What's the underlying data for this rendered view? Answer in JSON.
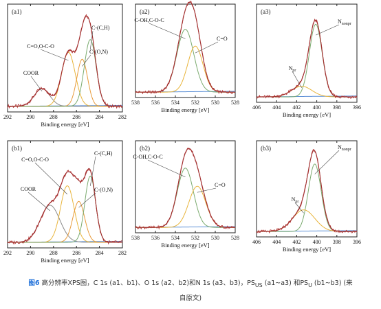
{
  "colors": {
    "measured": "#b33a3a",
    "envelope": "#a23030",
    "palette": [
      "#7aaa6e",
      "#e8b43a",
      "#e89a3a",
      "#5b8fd6",
      "#8a8a8a"
    ]
  },
  "caption": {
    "figure_label": "图6",
    "text_1": " 高分辨率XPS图，C 1s (a1、b1)、O 1s (a2、b2)和N 1s (a3、b3)，PS",
    "sub_1": "US",
    "text_2": " (a1~a3) 和PS",
    "sub_2": "U",
    "text_3": " (b1~b3)  (来",
    "line_2": "自原文)"
  },
  "chart_data": [
    {
      "panel": "(a1)",
      "type": "line",
      "xlabel": "Binding energy [eV]",
      "xlim": [
        292,
        282
      ],
      "ylim": [
        0,
        1.0
      ],
      "xticks": [
        292,
        290,
        288,
        286,
        284,
        282
      ],
      "peaks": [
        {
          "label": "COOR",
          "center": 289.0,
          "height": 0.18,
          "fwhm": 1.6
        },
        {
          "label": "C=O,O-C-O",
          "center": 286.7,
          "height": 0.55,
          "fwhm": 1.4
        },
        {
          "label": "C-(O,N)",
          "center": 285.5,
          "height": 0.48,
          "fwhm": 1.1
        },
        {
          "label": "C-(C,H)",
          "center": 284.8,
          "height": 0.68,
          "fwhm": 1.2
        }
      ],
      "series": [
        {
          "name": "measured"
        },
        {
          "name": "fit envelope"
        }
      ]
    },
    {
      "panel": "(a2)",
      "type": "line",
      "xlabel": "Binding energy [eV]",
      "xlim": [
        538,
        528
      ],
      "ylim": [
        0,
        1.0
      ],
      "xticks": [
        538,
        536,
        534,
        532,
        530,
        528
      ],
      "peaks": [
        {
          "label": "C-OH,C-O-C",
          "center": 533.0,
          "height": 0.75,
          "fwhm": 2.0
        },
        {
          "label": "C=O",
          "center": 532.0,
          "height": 0.55,
          "fwhm": 1.8
        }
      ],
      "series": [
        {
          "name": "measured"
        },
        {
          "name": "fit envelope"
        }
      ]
    },
    {
      "panel": "(a3)",
      "type": "line",
      "xlabel": "Binding energy [eV]",
      "xlim": [
        406,
        396
      ],
      "ylim": [
        0,
        1.0
      ],
      "xticks": [
        406,
        404,
        402,
        400,
        398,
        396
      ],
      "peaks": [
        {
          "label": "Nnonpr",
          "center": 400.1,
          "height": 0.82,
          "fwhm": 1.5
        },
        {
          "label": "Npr",
          "center": 401.5,
          "height": 0.12,
          "fwhm": 2.4
        }
      ],
      "series": [
        {
          "name": "measured"
        },
        {
          "name": "fit envelope"
        }
      ]
    },
    {
      "panel": "(b1)",
      "type": "line",
      "xlabel": "Binding energy [eV]",
      "xlim": [
        292,
        282
      ],
      "ylim": [
        0,
        1.0
      ],
      "xticks": [
        292,
        290,
        288,
        286,
        284,
        282
      ],
      "peaks": [
        {
          "label": "COOR",
          "center": 288.3,
          "height": 0.38,
          "fwhm": 2.0
        },
        {
          "label": "C=O,O-C-O",
          "center": 286.8,
          "height": 0.58,
          "fwhm": 1.4
        },
        {
          "label": "C-(O,N)",
          "center": 285.8,
          "height": 0.42,
          "fwhm": 1.2
        },
        {
          "label": "C-(C,H)",
          "center": 284.8,
          "height": 0.68,
          "fwhm": 1.1
        }
      ],
      "series": [
        {
          "name": "measured"
        },
        {
          "name": "fit envelope"
        }
      ]
    },
    {
      "panel": "(b2)",
      "type": "line",
      "xlabel": "Binding energy [eV]",
      "xlim": [
        538,
        528
      ],
      "ylim": [
        0,
        1.0
      ],
      "xticks": [
        538,
        536,
        534,
        532,
        530,
        528
      ],
      "peaks": [
        {
          "label": "C-OH,C-O-C",
          "center": 533.0,
          "height": 0.72,
          "fwhm": 1.9
        },
        {
          "label": "C=O",
          "center": 531.8,
          "height": 0.5,
          "fwhm": 2.0
        }
      ],
      "series": [
        {
          "name": "measured"
        },
        {
          "name": "fit envelope"
        }
      ]
    },
    {
      "panel": "(b3)",
      "type": "line",
      "xlabel": "Binding energy [eV]",
      "xlim": [
        406,
        396
      ],
      "ylim": [
        0,
        1.0
      ],
      "xticks": [
        406,
        404,
        402,
        400,
        398,
        396
      ],
      "peaks": [
        {
          "label": "Nnonpr",
          "center": 400.2,
          "height": 0.78,
          "fwhm": 1.5
        },
        {
          "label": "Npr",
          "center": 401.3,
          "height": 0.25,
          "fwhm": 2.6
        }
      ],
      "series": [
        {
          "name": "measured"
        },
        {
          "name": "fit envelope"
        }
      ]
    }
  ]
}
